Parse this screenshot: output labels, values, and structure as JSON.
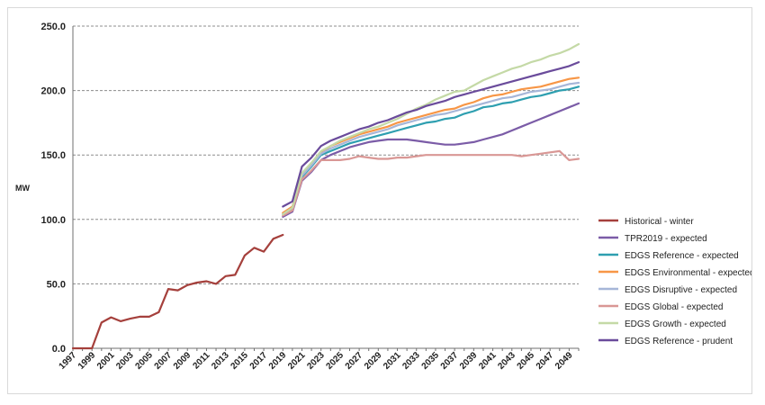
{
  "chart_data": {
    "type": "line",
    "title": "",
    "xlabel": "",
    "ylabel": "MW",
    "ylim": [
      0,
      250
    ],
    "yticks": [
      "0.0",
      "50.0",
      "100.0",
      "150.0",
      "200.0",
      "250.0"
    ],
    "xtick_labels": [
      "1997",
      "1999",
      "2001",
      "2003",
      "2005",
      "2007",
      "2009",
      "2011",
      "2013",
      "2015",
      "2017",
      "2019",
      "2021",
      "2023",
      "2025",
      "2027",
      "2029",
      "2031",
      "2033",
      "2035",
      "2037",
      "2039",
      "2041",
      "2043",
      "2045",
      "2047",
      "2049"
    ],
    "grid": "horizontal dashed",
    "legend_position": "right",
    "series": [
      {
        "name": "Historical - winter",
        "color": "#a5403c",
        "x": [
          1997,
          1998,
          1999,
          2000,
          2001,
          2002,
          2003,
          2004,
          2005,
          2006,
          2007,
          2008,
          2009,
          2010,
          2011,
          2012,
          2013,
          2014,
          2015,
          2016,
          2017,
          2018,
          2019
        ],
        "values": [
          0,
          0,
          0,
          20,
          24,
          21,
          23,
          24.5,
          24.5,
          28,
          46,
          45,
          49,
          51,
          52,
          50,
          56,
          57,
          72,
          78,
          75,
          85,
          88
        ]
      },
      {
        "name": "TPR2019 - expected",
        "color": "#7b5ca7",
        "x": [
          2019,
          2020,
          2021,
          2022,
          2023,
          2024,
          2025,
          2026,
          2027,
          2028,
          2029,
          2030,
          2031,
          2032,
          2033,
          2034,
          2035,
          2036,
          2037,
          2038,
          2039,
          2040,
          2041,
          2042,
          2043,
          2044,
          2045,
          2046,
          2047,
          2048,
          2049,
          2050
        ],
        "values": [
          102,
          106,
          130,
          137,
          146,
          150,
          153,
          156,
          158,
          160,
          161,
          162,
          162,
          162,
          161,
          160,
          159,
          158,
          158,
          159,
          160,
          162,
          164,
          166,
          169,
          172,
          175,
          178,
          181,
          184,
          187,
          190
        ]
      },
      {
        "name": "EDGS Reference - expected",
        "color": "#2e9fb0",
        "x": [
          2019,
          2020,
          2021,
          2022,
          2023,
          2024,
          2025,
          2026,
          2027,
          2028,
          2029,
          2030,
          2031,
          2032,
          2033,
          2034,
          2035,
          2036,
          2037,
          2038,
          2039,
          2040,
          2041,
          2042,
          2043,
          2044,
          2045,
          2046,
          2047,
          2048,
          2049,
          2050
        ],
        "values": [
          104,
          108,
          133,
          141,
          150,
          153,
          156,
          159,
          161,
          163,
          165,
          167,
          169,
          171,
          173,
          175,
          176,
          178,
          179,
          182,
          184,
          187,
          188,
          190,
          191,
          193,
          195,
          196,
          198,
          200,
          201,
          203
        ]
      },
      {
        "name": "EDGS Environmental - expected",
        "color": "#f79646",
        "x": [
          2019,
          2020,
          2021,
          2022,
          2023,
          2024,
          2025,
          2026,
          2027,
          2028,
          2029,
          2030,
          2031,
          2032,
          2033,
          2034,
          2035,
          2036,
          2037,
          2038,
          2039,
          2040,
          2041,
          2042,
          2043,
          2044,
          2045,
          2046,
          2047,
          2048,
          2049,
          2050
        ],
        "values": [
          105,
          110,
          135,
          143,
          152,
          157,
          160,
          163,
          166,
          168,
          170,
          172,
          175,
          177,
          179,
          181,
          183,
          185,
          186,
          189,
          191,
          194,
          196,
          197,
          199,
          201,
          202,
          203,
          205,
          207,
          209,
          210
        ]
      },
      {
        "name": "EDGS Disruptive - expected",
        "color": "#a6b6d8",
        "x": [
          2019,
          2020,
          2021,
          2022,
          2023,
          2024,
          2025,
          2026,
          2027,
          2028,
          2029,
          2030,
          2031,
          2032,
          2033,
          2034,
          2035,
          2036,
          2037,
          2038,
          2039,
          2040,
          2041,
          2042,
          2043,
          2044,
          2045,
          2046,
          2047,
          2048,
          2049,
          2050
        ],
        "values": [
          104,
          109,
          134,
          142,
          151,
          155,
          158,
          161,
          164,
          166,
          168,
          170,
          173,
          175,
          177,
          179,
          181,
          182,
          184,
          186,
          188,
          190,
          192,
          194,
          195,
          197,
          199,
          200,
          201,
          203,
          205,
          206
        ]
      },
      {
        "name": "EDGS Global - expected",
        "color": "#d99795",
        "x": [
          2019,
          2020,
          2021,
          2022,
          2023,
          2024,
          2025,
          2026,
          2027,
          2028,
          2029,
          2030,
          2031,
          2032,
          2033,
          2034,
          2035,
          2036,
          2037,
          2038,
          2039,
          2040,
          2041,
          2042,
          2043,
          2044,
          2045,
          2046,
          2047,
          2048,
          2049,
          2050
        ],
        "values": [
          103,
          107,
          131,
          138,
          146,
          146,
          146,
          147,
          149,
          148,
          147,
          147,
          148,
          148,
          149,
          150,
          150,
          150,
          150,
          150,
          150,
          150,
          150,
          150,
          150,
          149,
          150,
          151,
          152,
          153,
          146,
          147
        ]
      },
      {
        "name": "EDGS Growth - expected",
        "color": "#c4d9a6",
        "x": [
          2019,
          2020,
          2021,
          2022,
          2023,
          2024,
          2025,
          2026,
          2027,
          2028,
          2029,
          2030,
          2031,
          2032,
          2033,
          2034,
          2035,
          2036,
          2037,
          2038,
          2039,
          2040,
          2041,
          2042,
          2043,
          2044,
          2045,
          2046,
          2047,
          2048,
          2049,
          2050
        ],
        "values": [
          104,
          109,
          136,
          144,
          153,
          157,
          161,
          164,
          167,
          170,
          172,
          175,
          178,
          182,
          186,
          189,
          193,
          196,
          199,
          200,
          204,
          208,
          211,
          214,
          217,
          219,
          222,
          224,
          227,
          229,
          232,
          236
        ]
      },
      {
        "name": "EDGS Reference - prudent",
        "color": "#6a4b9b",
        "x": [
          2019,
          2020,
          2021,
          2022,
          2023,
          2024,
          2025,
          2026,
          2027,
          2028,
          2029,
          2030,
          2031,
          2032,
          2033,
          2034,
          2035,
          2036,
          2037,
          2038,
          2039,
          2040,
          2041,
          2042,
          2043,
          2044,
          2045,
          2046,
          2047,
          2048,
          2049,
          2050
        ],
        "values": [
          110,
          114,
          141,
          148,
          157,
          161,
          164,
          167,
          170,
          172,
          175,
          177,
          180,
          183,
          185,
          188,
          190,
          192,
          195,
          197,
          199,
          201,
          203,
          205,
          207,
          209,
          211,
          213,
          215,
          217,
          219,
          222
        ]
      }
    ]
  }
}
